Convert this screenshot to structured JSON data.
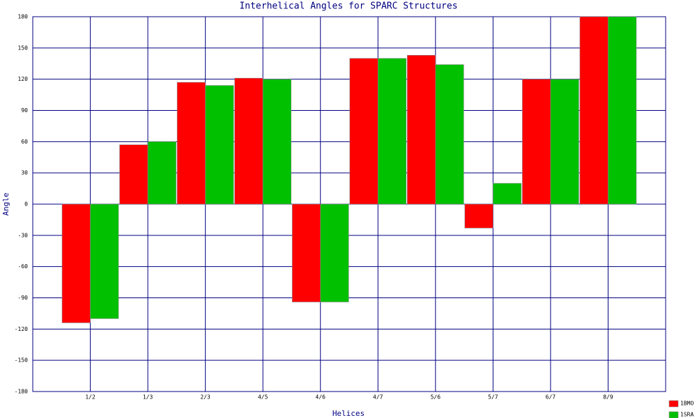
{
  "chart_data": {
    "type": "bar",
    "title": "Interhelical Angles for SPARC Structures",
    "x_label": "Helices",
    "y_label": "Angle",
    "categories": [
      "1/2",
      "1/3",
      "2/3",
      "4/5",
      "4/6",
      "4/7",
      "5/6",
      "5/7",
      "6/7",
      "8/9"
    ],
    "series": [
      {
        "name": "1BMO",
        "color": "#ff0000",
        "values": [
          -114,
          57,
          117,
          121,
          -94,
          140,
          143,
          -23,
          120,
          180
        ]
      },
      {
        "name": "1SRA",
        "color": "#00c000",
        "values": [
          -110,
          60,
          114,
          120,
          -94,
          140,
          134,
          20,
          120,
          180
        ]
      }
    ],
    "ylim": [
      -180,
      180
    ],
    "yticks": [
      -180,
      -150,
      -120,
      -90,
      -60,
      -30,
      0,
      30,
      60,
      90,
      120,
      150,
      180
    ],
    "grid": true,
    "grid_color": "#000080",
    "legend": "bottom-right"
  }
}
